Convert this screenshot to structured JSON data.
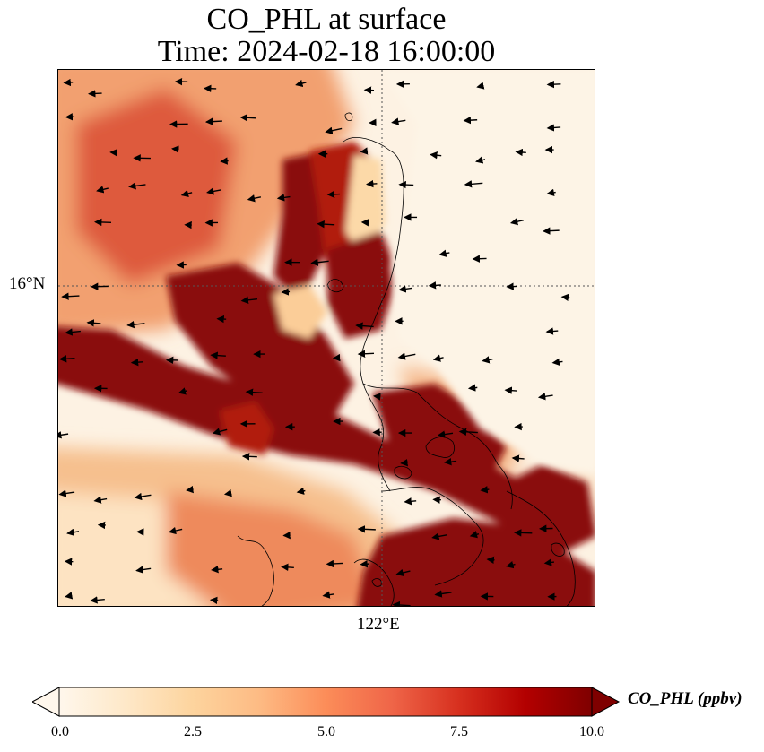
{
  "title": {
    "line1": "CO_PHL at surface",
    "line2": "Time: 2024-02-18 16:00:00"
  },
  "map": {
    "lat_gridline_label": "16°N",
    "lon_gridline_label": "122°E",
    "field": "CO_PHL",
    "overlays": [
      "coastline",
      "wind-vectors",
      "graticule"
    ]
  },
  "colorbar": {
    "label": "CO_PHL (ppbv)",
    "min": 0.0,
    "max": 10.0,
    "ticks": [
      "0.0",
      "2.5",
      "5.0",
      "7.5",
      "10.0"
    ],
    "colormap": "OrRd",
    "extend": "both",
    "colors": [
      "#fff7ec",
      "#fee8c8",
      "#fdd49e",
      "#fdbb84",
      "#fc8d59",
      "#ef6548",
      "#d7301f",
      "#b30000",
      "#7f0000"
    ]
  }
}
